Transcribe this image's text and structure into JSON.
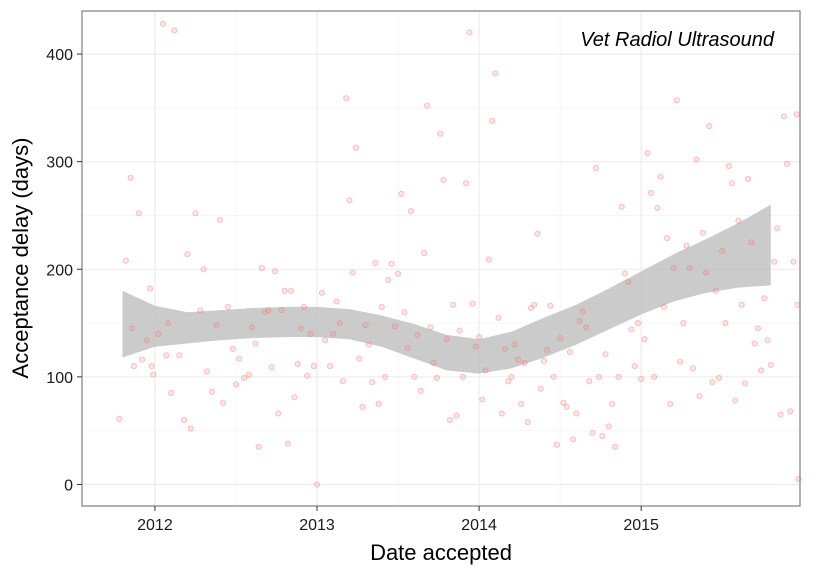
{
  "chart_data": {
    "type": "scatter",
    "title": "Vet Radiol Ultrasound",
    "xlabel": "Date accepted",
    "ylabel": "Acceptance delay (days)",
    "x_unit": "year",
    "xlim": [
      2011.55,
      2015.98
    ],
    "ylim": [
      -20,
      440
    ],
    "x_ticks": [
      2012,
      2013,
      2014,
      2015
    ],
    "x_tick_labels": [
      "2012",
      "2013",
      "2014",
      "2015"
    ],
    "y_ticks": [
      0,
      100,
      200,
      300,
      400
    ],
    "y_tick_labels": [
      "0",
      "100",
      "200",
      "300",
      "400"
    ],
    "grid": true,
    "legend": "none",
    "colors": {
      "points": "#f8766d",
      "ribbon": "#bebebe",
      "panel_border": "#7f7f7f",
      "grid": "#ebebeb"
    },
    "series": [
      {
        "values": [
          [
            2011.78,
            61
          ],
          [
            2011.82,
            208
          ],
          [
            2011.85,
            285
          ],
          [
            2011.86,
            145
          ],
          [
            2011.87,
            110
          ],
          [
            2011.9,
            252
          ],
          [
            2011.92,
            116
          ],
          [
            2011.95,
            134
          ],
          [
            2011.97,
            182
          ],
          [
            2011.98,
            110
          ],
          [
            2011.99,
            102
          ],
          [
            2012.02,
            140
          ],
          [
            2012.05,
            428
          ],
          [
            2012.07,
            120
          ],
          [
            2012.08,
            150
          ],
          [
            2012.1,
            85
          ],
          [
            2012.12,
            422
          ],
          [
            2012.15,
            120
          ],
          [
            2012.18,
            60
          ],
          [
            2012.2,
            214
          ],
          [
            2012.22,
            52
          ],
          [
            2012.25,
            252
          ],
          [
            2012.28,
            162
          ],
          [
            2012.3,
            200
          ],
          [
            2012.32,
            105
          ],
          [
            2012.35,
            86
          ],
          [
            2012.38,
            148
          ],
          [
            2012.4,
            246
          ],
          [
            2012.42,
            76
          ],
          [
            2012.45,
            165
          ],
          [
            2012.48,
            126
          ],
          [
            2012.5,
            93
          ],
          [
            2012.52,
            117
          ],
          [
            2012.55,
            99
          ],
          [
            2012.58,
            102
          ],
          [
            2012.6,
            146
          ],
          [
            2012.62,
            131
          ],
          [
            2012.64,
            35
          ],
          [
            2012.66,
            201
          ],
          [
            2012.68,
            160
          ],
          [
            2012.7,
            162
          ],
          [
            2012.72,
            109
          ],
          [
            2012.74,
            198
          ],
          [
            2012.76,
            66
          ],
          [
            2012.78,
            162
          ],
          [
            2012.8,
            180
          ],
          [
            2012.82,
            38
          ],
          [
            2012.84,
            180
          ],
          [
            2012.86,
            81
          ],
          [
            2012.88,
            112
          ],
          [
            2012.9,
            145
          ],
          [
            2012.92,
            165
          ],
          [
            2012.94,
            101
          ],
          [
            2012.96,
            140
          ],
          [
            2012.98,
            110
          ],
          [
            2013.0,
            0
          ],
          [
            2013.03,
            178
          ],
          [
            2013.05,
            134
          ],
          [
            2013.08,
            110
          ],
          [
            2013.1,
            140
          ],
          [
            2013.12,
            170
          ],
          [
            2013.14,
            150
          ],
          [
            2013.16,
            96
          ],
          [
            2013.18,
            359
          ],
          [
            2013.2,
            264
          ],
          [
            2013.22,
            197
          ],
          [
            2013.24,
            313
          ],
          [
            2013.26,
            117
          ],
          [
            2013.28,
            72
          ],
          [
            2013.3,
            148
          ],
          [
            2013.32,
            130
          ],
          [
            2013.34,
            95
          ],
          [
            2013.36,
            206
          ],
          [
            2013.38,
            75
          ],
          [
            2013.4,
            165
          ],
          [
            2013.42,
            100
          ],
          [
            2013.44,
            190
          ],
          [
            2013.46,
            205
          ],
          [
            2013.48,
            147
          ],
          [
            2013.5,
            196
          ],
          [
            2013.52,
            270
          ],
          [
            2013.54,
            160
          ],
          [
            2013.56,
            127
          ],
          [
            2013.58,
            254
          ],
          [
            2013.6,
            100
          ],
          [
            2013.62,
            139
          ],
          [
            2013.64,
            87
          ],
          [
            2013.66,
            215
          ],
          [
            2013.68,
            352
          ],
          [
            2013.7,
            146
          ],
          [
            2013.72,
            113
          ],
          [
            2013.74,
            99
          ],
          [
            2013.76,
            326
          ],
          [
            2013.78,
            283
          ],
          [
            2013.8,
            135
          ],
          [
            2013.82,
            60
          ],
          [
            2013.84,
            167
          ],
          [
            2013.86,
            64
          ],
          [
            2013.88,
            143
          ],
          [
            2013.9,
            100
          ],
          [
            2013.92,
            280
          ],
          [
            2013.94,
            420
          ],
          [
            2013.96,
            168
          ],
          [
            2013.98,
            128
          ],
          [
            2014.0,
            137
          ],
          [
            2014.02,
            79
          ],
          [
            2014.04,
            106
          ],
          [
            2014.06,
            209
          ],
          [
            2014.08,
            338
          ],
          [
            2014.1,
            382
          ],
          [
            2014.12,
            155
          ],
          [
            2014.14,
            66
          ],
          [
            2014.16,
            126
          ],
          [
            2014.18,
            96
          ],
          [
            2014.2,
            100
          ],
          [
            2014.22,
            130
          ],
          [
            2014.24,
            116
          ],
          [
            2014.26,
            75
          ],
          [
            2014.28,
            113
          ],
          [
            2014.3,
            58
          ],
          [
            2014.32,
            164
          ],
          [
            2014.34,
            167
          ],
          [
            2014.36,
            233
          ],
          [
            2014.38,
            89
          ],
          [
            2014.4,
            115
          ],
          [
            2014.42,
            125
          ],
          [
            2014.44,
            166
          ],
          [
            2014.46,
            100
          ],
          [
            2014.48,
            37
          ],
          [
            2014.5,
            136
          ],
          [
            2014.52,
            76
          ],
          [
            2014.54,
            72
          ],
          [
            2014.56,
            123
          ],
          [
            2014.58,
            42
          ],
          [
            2014.6,
            66
          ],
          [
            2014.62,
            152
          ],
          [
            2014.64,
            161
          ],
          [
            2014.66,
            146
          ],
          [
            2014.68,
            96
          ],
          [
            2014.7,
            48
          ],
          [
            2014.72,
            294
          ],
          [
            2014.74,
            100
          ],
          [
            2014.76,
            45
          ],
          [
            2014.78,
            121
          ],
          [
            2014.8,
            54
          ],
          [
            2014.82,
            75
          ],
          [
            2014.84,
            35
          ],
          [
            2014.86,
            100
          ],
          [
            2014.88,
            258
          ],
          [
            2014.9,
            196
          ],
          [
            2014.92,
            188
          ],
          [
            2014.94,
            144
          ],
          [
            2014.96,
            110
          ],
          [
            2014.98,
            150
          ],
          [
            2015.0,
            98
          ],
          [
            2015.02,
            135
          ],
          [
            2015.04,
            308
          ],
          [
            2015.06,
            271
          ],
          [
            2015.08,
            100
          ],
          [
            2015.1,
            257
          ],
          [
            2015.12,
            286
          ],
          [
            2015.14,
            165
          ],
          [
            2015.16,
            229
          ],
          [
            2015.18,
            75
          ],
          [
            2015.2,
            201
          ],
          [
            2015.22,
            357
          ],
          [
            2015.24,
            114
          ],
          [
            2015.26,
            150
          ],
          [
            2015.28,
            222
          ],
          [
            2015.3,
            201
          ],
          [
            2015.32,
            108
          ],
          [
            2015.34,
            302
          ],
          [
            2015.36,
            82
          ],
          [
            2015.38,
            234
          ],
          [
            2015.4,
            197
          ],
          [
            2015.42,
            333
          ],
          [
            2015.44,
            95
          ],
          [
            2015.46,
            180
          ],
          [
            2015.48,
            99
          ],
          [
            2015.5,
            217
          ],
          [
            2015.52,
            150
          ],
          [
            2015.54,
            296
          ],
          [
            2015.56,
            280
          ],
          [
            2015.58,
            78
          ],
          [
            2015.6,
            245
          ],
          [
            2015.62,
            167
          ],
          [
            2015.64,
            94
          ],
          [
            2015.66,
            284
          ],
          [
            2015.68,
            225
          ],
          [
            2015.7,
            131
          ],
          [
            2015.72,
            145
          ],
          [
            2015.74,
            106
          ],
          [
            2015.76,
            173
          ],
          [
            2015.78,
            134
          ],
          [
            2015.8,
            111
          ],
          [
            2015.82,
            207
          ],
          [
            2015.84,
            238
          ],
          [
            2015.86,
            65
          ],
          [
            2015.88,
            342
          ],
          [
            2015.9,
            298
          ],
          [
            2015.92,
            68
          ],
          [
            2015.94,
            207
          ],
          [
            2015.96,
            344
          ],
          [
            2015.965,
            167
          ],
          [
            2015.97,
            5
          ]
        ]
      }
    ],
    "smooth_band": {
      "x": [
        2011.8,
        2012.0,
        2012.2,
        2012.4,
        2012.6,
        2012.8,
        2013.0,
        2013.2,
        2013.4,
        2013.6,
        2013.8,
        2014.0,
        2014.2,
        2014.4,
        2014.6,
        2014.8,
        2015.0,
        2015.2,
        2015.4,
        2015.6,
        2015.8
      ],
      "lower": [
        118,
        128,
        131,
        134,
        136,
        137,
        137,
        135,
        128,
        117,
        106,
        103,
        108,
        118,
        130,
        144,
        158,
        170,
        178,
        183,
        185
      ],
      "upper": [
        180,
        166,
        160,
        162,
        164,
        165,
        165,
        163,
        157,
        149,
        139,
        135,
        142,
        155,
        167,
        182,
        198,
        214,
        228,
        243,
        260
      ]
    }
  }
}
